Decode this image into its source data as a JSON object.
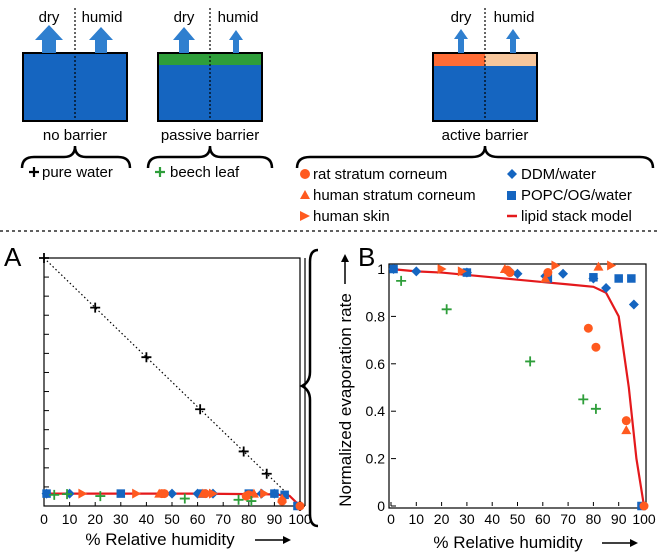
{
  "colors": {
    "blue": "#1565c0",
    "green": "#2e9e3a",
    "orange": "#ff5a1f",
    "orange_light": "#ff6c35",
    "peach": "#f6c69c",
    "arrow": "#2f7fcf",
    "red": "#e4191c"
  },
  "panels": [
    {
      "label": "no barrier",
      "dry": "dry",
      "humid": "humid",
      "layer": "none"
    },
    {
      "label": "passive barrier",
      "dry": "dry",
      "humid": "humid",
      "layer": "green"
    },
    {
      "label": "active barrier",
      "dry": "dry",
      "humid": "humid",
      "layer": "orange-peach"
    }
  ],
  "legend": {
    "pure_water": "pure water",
    "beech_leaf": "beech leaf",
    "rat_sc": "rat stratum corneum",
    "human_sc": "human stratum corneum",
    "human_skin": "human skin",
    "ddm": "DDM/water",
    "popc": "POPC/OG/water",
    "lipid_model": "lipid stack model"
  },
  "chart_data": [
    {
      "panel": "A",
      "type": "scatter",
      "xlabel": "% Relative humidity",
      "ylabel": "",
      "xlim": [
        0,
        100
      ],
      "ylim": [
        0,
        1
      ],
      "xticks": [
        0,
        10,
        20,
        30,
        40,
        50,
        60,
        70,
        80,
        90,
        100
      ],
      "series": [
        {
          "name": "pure water",
          "marker": "plus",
          "color": "#000000",
          "x": [
            0,
            20,
            40,
            61,
            78,
            87,
            100
          ],
          "y": [
            1,
            0.8,
            0.6,
            0.39,
            0.22,
            0.13,
            0
          ],
          "dotted_line": true
        },
        {
          "name": "lipid stack model",
          "marker": "line",
          "color": "#e4191c",
          "x": [
            0,
            20,
            40,
            60,
            80,
            90,
            96,
            100
          ],
          "y": [
            0.05,
            0.05,
            0.05,
            0.05,
            0.048,
            0.047,
            0.04,
            0
          ]
        },
        {
          "name": "DDM/water",
          "marker": "diamond",
          "color": "#1565c0",
          "x": [
            1,
            10,
            50,
            60,
            66,
            85,
            90
          ],
          "y": [
            0.05,
            0.05,
            0.05,
            0.05,
            0.05,
            0.05,
            0.05
          ]
        },
        {
          "name": "POPC/OG/water",
          "marker": "square",
          "color": "#1565c0",
          "x": [
            1,
            30,
            62,
            80,
            90,
            94,
            99
          ],
          "y": [
            0.05,
            0.05,
            0.05,
            0.05,
            0.05,
            0.045,
            0
          ]
        },
        {
          "name": "rat stratum corneum",
          "marker": "circle",
          "color": "#ff5a1f",
          "x": [
            46,
            47,
            63,
            80,
            79,
            93,
            100
          ],
          "y": [
            0.05,
            0.05,
            0.05,
            0.045,
            0.04,
            0.02,
            0
          ]
        },
        {
          "name": "human stratum corneum",
          "marker": "triangle",
          "color": "#ff5a1f",
          "x": [
            45,
            62,
            82,
            93
          ],
          "y": [
            0.05,
            0.05,
            0.05,
            0.03
          ]
        },
        {
          "name": "human skin",
          "marker": "triangle-right",
          "color": "#ff5a1f",
          "x": [
            15,
            36,
            66,
            86
          ],
          "y": [
            0.05,
            0.05,
            0.05,
            0.05
          ]
        },
        {
          "name": "beech leaf",
          "marker": "plus",
          "color": "#2e9e3a",
          "x": [
            4,
            9,
            22,
            55,
            76,
            81
          ],
          "y": [
            0.045,
            0.048,
            0.04,
            0.03,
            0.025,
            0.02
          ]
        }
      ]
    },
    {
      "panel": "B",
      "type": "scatter",
      "xlabel": "% Relative humidity",
      "ylabel": "Normalized evaporation rate",
      "xlim": [
        0,
        100
      ],
      "ylim": [
        0,
        1
      ],
      "xticks": [
        0,
        10,
        20,
        30,
        40,
        50,
        60,
        70,
        80,
        90,
        100
      ],
      "yticks": [
        0,
        0.2,
        0.4,
        0.6,
        0.8,
        1
      ],
      "ytick_labels": [
        "0",
        "0.2",
        "0.4",
        "0.6",
        "0.8",
        "1"
      ],
      "series": [
        {
          "name": "lipid stack model",
          "marker": "line",
          "color": "#e4191c",
          "x": [
            0,
            10,
            20,
            30,
            40,
            50,
            60,
            70,
            80,
            85,
            90,
            94,
            97,
            100
          ],
          "y": [
            1,
            0.99,
            0.985,
            0.975,
            0.965,
            0.955,
            0.945,
            0.935,
            0.925,
            0.9,
            0.8,
            0.5,
            0.2,
            0
          ]
        },
        {
          "name": "DDM/water",
          "marker": "diamond",
          "color": "#1565c0",
          "x": [
            1,
            10,
            30,
            47,
            50,
            61,
            68,
            80,
            85,
            96
          ],
          "y": [
            1,
            0.99,
            0.985,
            0.99,
            0.98,
            0.97,
            0.98,
            0.96,
            0.92,
            0.85
          ]
        },
        {
          "name": "POPC/OG/water",
          "marker": "square",
          "color": "#1565c0",
          "x": [
            1,
            30,
            62,
            80,
            90,
            95,
            99
          ],
          "y": [
            1,
            0.985,
            0.96,
            0.965,
            0.96,
            0.96,
            0
          ]
        },
        {
          "name": "rat stratum corneum",
          "marker": "circle",
          "color": "#ff5a1f",
          "x": [
            46,
            47,
            62,
            78,
            81,
            93,
            100
          ],
          "y": [
            0.995,
            0.985,
            0.985,
            0.75,
            0.67,
            0.36,
            0
          ]
        },
        {
          "name": "human stratum corneum",
          "marker": "triangle",
          "color": "#ff5a1f",
          "x": [
            45,
            61,
            82,
            93
          ],
          "y": [
            1,
            0.96,
            1.01,
            0.32
          ]
        },
        {
          "name": "human skin",
          "marker": "triangle-right",
          "color": "#ff5a1f",
          "x": [
            20,
            28,
            65,
            87
          ],
          "y": [
            1,
            0.99,
            1.015,
            1.015
          ]
        },
        {
          "name": "beech leaf",
          "marker": "plus",
          "color": "#2e9e3a",
          "x": [
            4,
            22,
            55,
            76,
            81
          ],
          "y": [
            0.95,
            0.83,
            0.61,
            0.45,
            0.41
          ]
        }
      ]
    }
  ]
}
